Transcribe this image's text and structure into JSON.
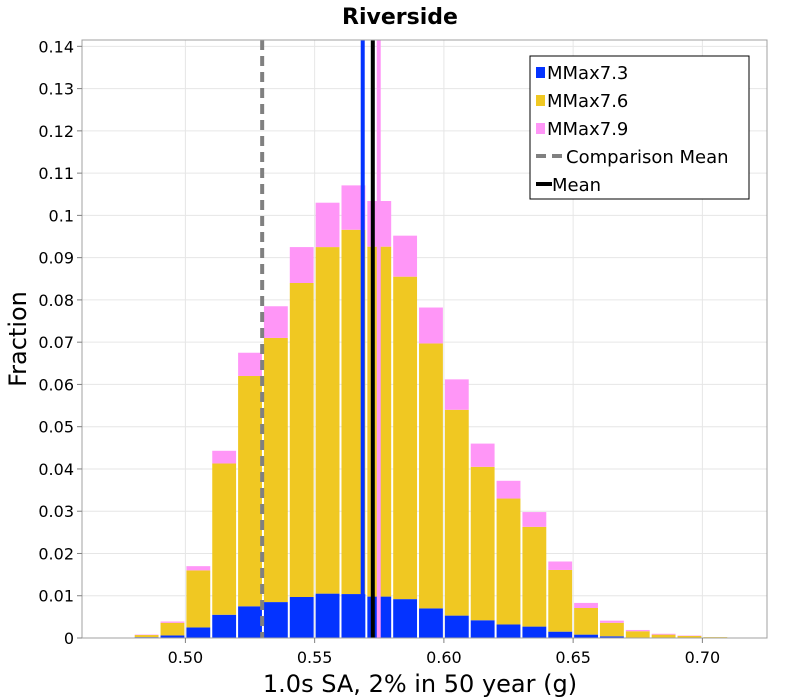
{
  "chart_data": {
    "type": "bar",
    "stacked": true,
    "title": "Riverside",
    "xlabel": "1.0s SA, 2% in 50 year (g)",
    "ylabel": "Fraction",
    "xlim": [
      0.46,
      0.725
    ],
    "ylim": [
      0,
      0.1415
    ],
    "x_ticks": [
      0.5,
      0.55,
      0.6,
      0.65,
      0.7
    ],
    "x_tick_labels": [
      "0.50",
      "0.55",
      "0.60",
      "0.65",
      "0.70"
    ],
    "y_ticks": [
      0,
      0.01,
      0.02,
      0.03,
      0.04,
      0.05,
      0.06,
      0.07,
      0.08,
      0.09,
      0.1,
      0.11,
      0.12,
      0.13,
      0.14
    ],
    "y_tick_labels": [
      "0",
      "0.01",
      "0.02",
      "0.03",
      "0.04",
      "0.05",
      "0.06",
      "0.07",
      "0.08",
      "0.09",
      "0.1",
      "0.11",
      "0.12",
      "0.13",
      "0.14"
    ],
    "bin_width": 0.005,
    "x": [
      0.4825,
      0.4875,
      0.4925,
      0.4975,
      0.5025,
      0.5075,
      0.5125,
      0.5175,
      0.5225,
      0.5275,
      0.5325,
      0.5375,
      0.5425,
      0.5475,
      0.5525,
      0.5575,
      0.5625,
      0.5675,
      0.5725,
      0.5775,
      0.5825,
      0.5875,
      0.5925,
      0.5975,
      0.6025,
      0.6075,
      0.6125,
      0.6175,
      0.6225,
      0.6275,
      0.6325,
      0.6375,
      0.6425,
      0.6475,
      0.6525,
      0.6575,
      0.6625,
      0.6675,
      0.6725,
      0.6775,
      0.6825,
      0.6875,
      0.6925,
      0.6975,
      0.7025,
      0.7075,
      0.7125,
      0.7175
    ],
    "series": [
      {
        "name": "MMax7.3",
        "color": "#0433ff",
        "values": [
          0.0002,
          0.0002,
          0.0006,
          0.0006,
          0.0025,
          0.0025,
          0.0055,
          0.0055,
          0.0075,
          0.0075,
          0.0085,
          0.0085,
          0.0097,
          0.0097,
          0.0105,
          0.0105,
          0.0104,
          0.0104,
          0.0098,
          0.0098,
          0.0092,
          0.0092,
          0.007,
          0.007,
          0.0053,
          0.0053,
          0.0042,
          0.0042,
          0.0032,
          0.0032,
          0.0027,
          0.0027,
          0.0015,
          0.0015,
          0.0008,
          0.0008,
          0.0004,
          0.0004,
          0.0001,
          0.0001,
          0.0001,
          0.0001,
          0.0,
          0.0,
          0.0,
          0.0,
          0.0,
          0.0
        ]
      },
      {
        "name": "MMax7.6",
        "color": "#f0c822",
        "values": [
          0.0005,
          0.0005,
          0.003,
          0.003,
          0.0135,
          0.0135,
          0.0358,
          0.0358,
          0.0545,
          0.0545,
          0.0625,
          0.0625,
          0.0743,
          0.0743,
          0.082,
          0.082,
          0.0862,
          0.0862,
          0.0828,
          0.0828,
          0.0763,
          0.0763,
          0.0627,
          0.0627,
          0.0487,
          0.0487,
          0.0363,
          0.0363,
          0.0298,
          0.0298,
          0.0236,
          0.0236,
          0.0146,
          0.0146,
          0.0063,
          0.0063,
          0.0032,
          0.0032,
          0.0015,
          0.0015,
          0.0007,
          0.0007,
          0.0005,
          0.0005,
          0.0002,
          0.0002,
          0.0001,
          0.0001
        ]
      },
      {
        "name": "MMax7.9",
        "color": "#ff96f7",
        "values": [
          0.0001,
          0.0001,
          0.0003,
          0.0003,
          0.001,
          0.001,
          0.003,
          0.003,
          0.0055,
          0.0055,
          0.0075,
          0.0075,
          0.0085,
          0.0085,
          0.0105,
          0.0105,
          0.0105,
          0.0105,
          0.0108,
          0.0108,
          0.0097,
          0.0097,
          0.0085,
          0.0085,
          0.0072,
          0.0072,
          0.0055,
          0.0055,
          0.0042,
          0.0042,
          0.0035,
          0.0035,
          0.002,
          0.002,
          0.0012,
          0.0012,
          0.0005,
          0.0005,
          0.0003,
          0.0003,
          0.0002,
          0.0002,
          0.0001,
          0.0001,
          0.0,
          0.0,
          0.0,
          0.0
        ]
      }
    ],
    "reference_lines": [
      {
        "name": "Comparison Mean",
        "x": 0.5297,
        "style": "dashed",
        "color": "#808080"
      },
      {
        "name": "Mean",
        "x": 0.5725,
        "style": "solid",
        "color": "#000000"
      }
    ],
    "series_marker_lines": [
      {
        "series": "MMax7.3",
        "x": 0.5686,
        "color": "#0433ff"
      },
      {
        "series": "MMax7.9",
        "x": 0.5748,
        "color": "#ff96f7"
      }
    ],
    "legend": {
      "placement": "top-right",
      "items": [
        {
          "label": "MMax7.3",
          "kind": "swatch",
          "color": "#0433ff"
        },
        {
          "label": "MMax7.6",
          "kind": "swatch",
          "color": "#f0c822"
        },
        {
          "label": "MMax7.9",
          "kind": "swatch",
          "color": "#ff96f7"
        },
        {
          "label": "Comparison Mean",
          "kind": "dashed-line",
          "color": "#808080"
        },
        {
          "label": "Mean",
          "kind": "solid-line",
          "color": "#000000"
        }
      ]
    },
    "grid": true
  }
}
